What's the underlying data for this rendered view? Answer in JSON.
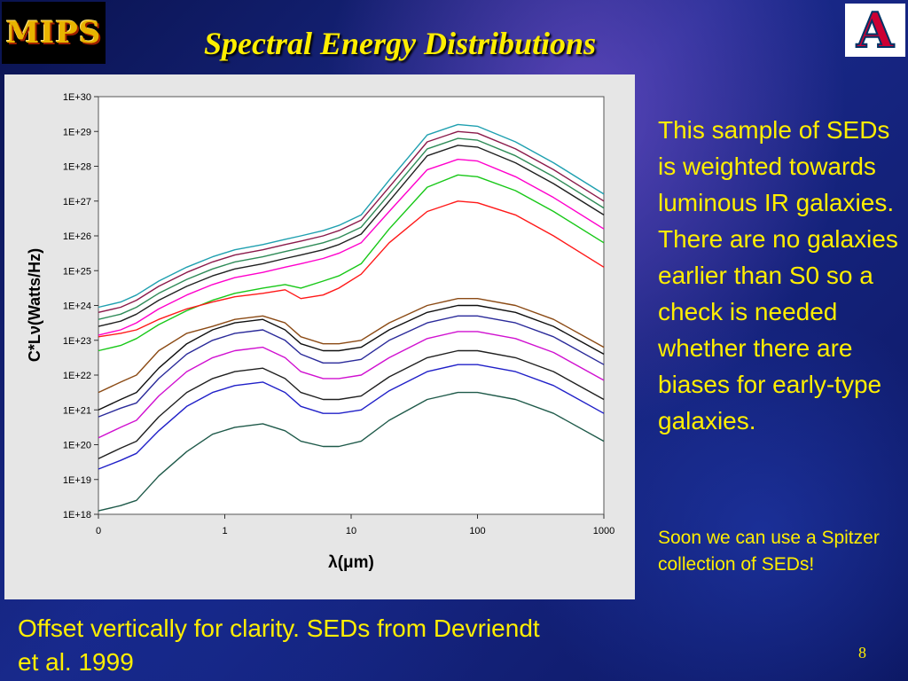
{
  "slide": {
    "logo_left": "MIPS",
    "logo_right": "A",
    "title": "Spectral Energy Distributions",
    "side_text": "This sample of SEDs is weighted towards luminous IR galaxies. There are no galaxies earlier than S0 so a check is needed whether there are biases for early-type galaxies.",
    "side_note": "Soon we can use a Spitzer collection of SEDs!",
    "footer": "Offset vertically for clarity. SEDs from Devriendt et al. 1999",
    "page_number": "8"
  },
  "chart_data": {
    "type": "line",
    "title": "",
    "xlabel": "λ(μm)",
    "ylabel": "C*Lν(Watts/Hz)",
    "x_scale": "log",
    "y_scale": "log",
    "xlim": [
      0.1,
      1000
    ],
    "ylim": [
      1e+18,
      1e+30
    ],
    "x_tick_labels": [
      "0",
      "1",
      "10",
      "100",
      "1000"
    ],
    "y_tick_labels": [
      "1E+18",
      "1E+19",
      "1E+20",
      "1E+21",
      "1E+22",
      "1E+23",
      "1E+24",
      "1E+25",
      "1E+26",
      "1E+27",
      "1E+28",
      "1E+29",
      "1E+30"
    ],
    "grid": false,
    "legend": "none",
    "x": [
      0.1,
      0.15,
      0.2,
      0.3,
      0.5,
      0.8,
      1.2,
      2,
      3,
      4,
      6,
      8,
      12,
      20,
      40,
      70,
      100,
      200,
      400,
      1000
    ],
    "series": [
      {
        "color": "#1fa0b0",
        "logy": [
          23.95,
          24.1,
          24.3,
          24.7,
          25.1,
          25.4,
          25.6,
          25.75,
          25.9,
          26.0,
          26.15,
          26.3,
          26.6,
          27.6,
          28.9,
          29.2,
          29.15,
          28.7,
          28.1,
          27.2
        ]
      },
      {
        "color": "#8b1a4a",
        "logy": [
          23.8,
          23.95,
          24.15,
          24.55,
          24.95,
          25.25,
          25.45,
          25.6,
          25.75,
          25.85,
          26.0,
          26.15,
          26.45,
          27.4,
          28.7,
          29.0,
          28.95,
          28.5,
          27.9,
          27.0
        ]
      },
      {
        "color": "#2e8b57",
        "logy": [
          23.6,
          23.75,
          23.95,
          24.35,
          24.75,
          25.05,
          25.25,
          25.4,
          25.55,
          25.65,
          25.8,
          25.95,
          26.25,
          27.2,
          28.5,
          28.8,
          28.75,
          28.3,
          27.7,
          26.8
        ]
      },
      {
        "color": "#202020",
        "logy": [
          23.4,
          23.55,
          23.75,
          24.15,
          24.55,
          24.85,
          25.05,
          25.2,
          25.35,
          25.45,
          25.6,
          25.75,
          26.05,
          27.0,
          28.3,
          28.6,
          28.55,
          28.1,
          27.5,
          26.6
        ]
      },
      {
        "color": "#ff00cc",
        "logy": [
          23.15,
          23.3,
          23.5,
          23.9,
          24.3,
          24.6,
          24.8,
          24.95,
          25.1,
          25.2,
          25.35,
          25.5,
          25.8,
          26.7,
          27.9,
          28.2,
          28.15,
          27.7,
          27.1,
          26.2
        ]
      },
      {
        "color": "#18c818",
        "logy": [
          22.7,
          22.85,
          23.05,
          23.45,
          23.85,
          24.15,
          24.35,
          24.5,
          24.6,
          24.5,
          24.7,
          24.85,
          25.2,
          26.2,
          27.4,
          27.75,
          27.7,
          27.3,
          26.7,
          25.8
        ]
      },
      {
        "color": "#ff1818",
        "logy": [
          23.1,
          23.2,
          23.3,
          23.6,
          23.9,
          24.1,
          24.25,
          24.35,
          24.45,
          24.2,
          24.3,
          24.5,
          24.9,
          25.8,
          26.7,
          27.0,
          26.95,
          26.6,
          26.0,
          25.1
        ]
      },
      {
        "color": "#8b4a14",
        "logy": [
          21.5,
          21.8,
          22.0,
          22.7,
          23.2,
          23.4,
          23.6,
          23.7,
          23.5,
          23.1,
          22.9,
          22.9,
          23.0,
          23.5,
          24.0,
          24.2,
          24.2,
          24.0,
          23.6,
          22.8
        ]
      },
      {
        "color": "#101010",
        "logy": [
          21.0,
          21.3,
          21.5,
          22.2,
          22.9,
          23.3,
          23.5,
          23.6,
          23.3,
          22.9,
          22.7,
          22.7,
          22.8,
          23.3,
          23.8,
          24.0,
          24.0,
          23.8,
          23.4,
          22.6
        ]
      },
      {
        "color": "#2a2a9a",
        "logy": [
          20.8,
          21.05,
          21.2,
          21.9,
          22.6,
          23.0,
          23.2,
          23.3,
          23.0,
          22.6,
          22.35,
          22.35,
          22.45,
          23.0,
          23.5,
          23.7,
          23.7,
          23.5,
          23.1,
          22.3
        ]
      },
      {
        "color": "#d010d0",
        "logy": [
          20.2,
          20.5,
          20.7,
          21.4,
          22.1,
          22.5,
          22.7,
          22.8,
          22.5,
          22.1,
          21.9,
          21.9,
          22.0,
          22.5,
          23.05,
          23.25,
          23.25,
          23.05,
          22.65,
          21.85
        ]
      },
      {
        "color": "#202020",
        "logy": [
          19.6,
          19.9,
          20.1,
          20.8,
          21.5,
          21.9,
          22.1,
          22.2,
          21.9,
          21.5,
          21.3,
          21.3,
          21.4,
          21.95,
          22.5,
          22.7,
          22.7,
          22.5,
          22.1,
          21.3
        ]
      },
      {
        "color": "#2020c8",
        "logy": [
          19.3,
          19.55,
          19.75,
          20.4,
          21.1,
          21.5,
          21.7,
          21.8,
          21.5,
          21.1,
          20.9,
          20.9,
          21.0,
          21.55,
          22.1,
          22.3,
          22.3,
          22.1,
          21.7,
          20.9
        ]
      },
      {
        "color": "#1f5a4a",
        "logy": [
          18.1,
          18.25,
          18.4,
          19.1,
          19.8,
          20.3,
          20.5,
          20.6,
          20.4,
          20.1,
          19.95,
          19.95,
          20.1,
          20.7,
          21.3,
          21.5,
          21.5,
          21.3,
          20.9,
          20.1
        ]
      }
    ]
  }
}
